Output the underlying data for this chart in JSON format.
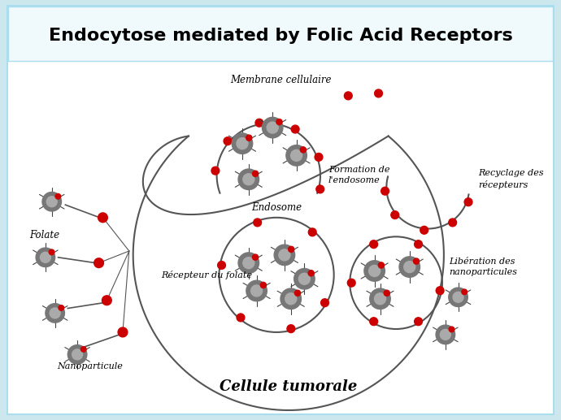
{
  "title": "Endocytose mediated by Folic Acid Receptors",
  "bg_outer": "#cce8ee",
  "bg_title": "#ffffff",
  "bg_diagram": "#ffffff",
  "cell_edge": "#666666",
  "labels": {
    "title": "Endocytose mediated by Folic Acid Receptors",
    "membrane": "Membrane cellulaire",
    "formation": "Formation de\nl'endosome",
    "recycling": "Recyclage des\nrécepteurs",
    "endosome": "Endosome",
    "liberation": "Libération des\nnanoparticules",
    "recepteur": "Récepteur du folate",
    "folate": "Folate",
    "nanoparticule": "Nanoparticule",
    "cellule": "Cellule tumorale"
  },
  "gray_body": "#777777",
  "gray_inner": "#aaaaaa",
  "red_color": "#cc0000",
  "line_color": "#555555",
  "leg_color": "#444444"
}
